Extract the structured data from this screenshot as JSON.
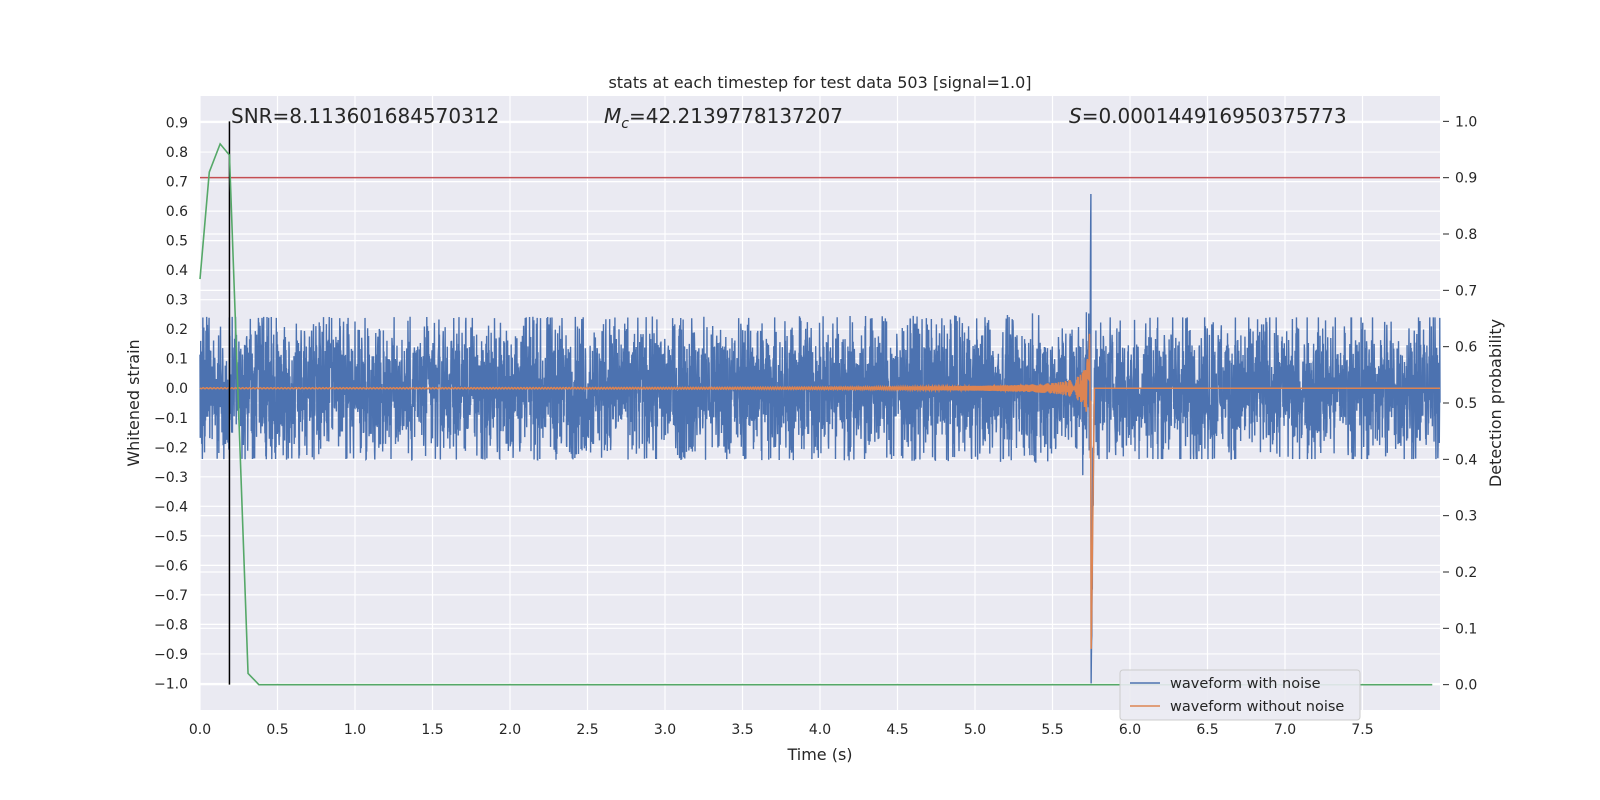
{
  "chart_data": {
    "type": "line",
    "title": "stats at each timestep for test data 503 [signal=1.0]",
    "xlabel": "Time (s)",
    "ylabel_left": "Whitened strain",
    "ylabel_right": "Detection probability",
    "xlim": [
      0.0,
      8.0
    ],
    "ylim_left": [
      -1.09,
      0.99
    ],
    "ylim_right": [
      -0.045,
      1.045
    ],
    "x_ticks": [
      "0.0",
      "0.5",
      "1.0",
      "1.5",
      "2.0",
      "2.5",
      "3.0",
      "3.5",
      "4.0",
      "4.5",
      "5.0",
      "5.5",
      "6.0",
      "6.5",
      "7.0",
      "7.5"
    ],
    "y_left_ticks": [
      "0.9",
      "0.8",
      "0.7",
      "0.6",
      "0.5",
      "0.4",
      "0.3",
      "0.2",
      "0.1",
      "0.0",
      "−0.1",
      "−0.2",
      "−0.3",
      "−0.4",
      "−0.5",
      "−0.6",
      "−0.7",
      "−0.8",
      "−0.9",
      "−1.0"
    ],
    "y_right_ticks": [
      "1.0",
      "0.9",
      "0.8",
      "0.7",
      "0.6",
      "0.5",
      "0.4",
      "0.3",
      "0.2",
      "0.1",
      "0.0"
    ],
    "grid": true,
    "legend": {
      "placement": "lower-right",
      "entries": [
        "waveform with noise",
        "waveform without noise"
      ]
    },
    "annotations": {
      "snr": "SNR=8.113601684570312",
      "mc_symbol": "M",
      "mc_sub": "c",
      "mc_value": "=42.2139778137207",
      "s_symbol": "S",
      "s_value": "=0.000144916950375773"
    },
    "threshold_probability": 0.9,
    "marker_time": 0.19,
    "merger_time": 5.75,
    "noise_band_amplitude": 0.24,
    "detection_probability": {
      "x": [
        0.0,
        0.06,
        0.13,
        0.19,
        0.31,
        0.38,
        7.95
      ],
      "y": [
        0.72,
        0.91,
        0.96,
        0.94,
        0.02,
        0.0,
        0.0
      ]
    },
    "colors": {
      "noise": "#4c72b0",
      "clean": "#dd8452",
      "probability": "#55a868",
      "threshold": "#c44e52",
      "marker": "#000000",
      "plot_bg": "#eaeaf2",
      "grid": "#ffffff"
    }
  }
}
